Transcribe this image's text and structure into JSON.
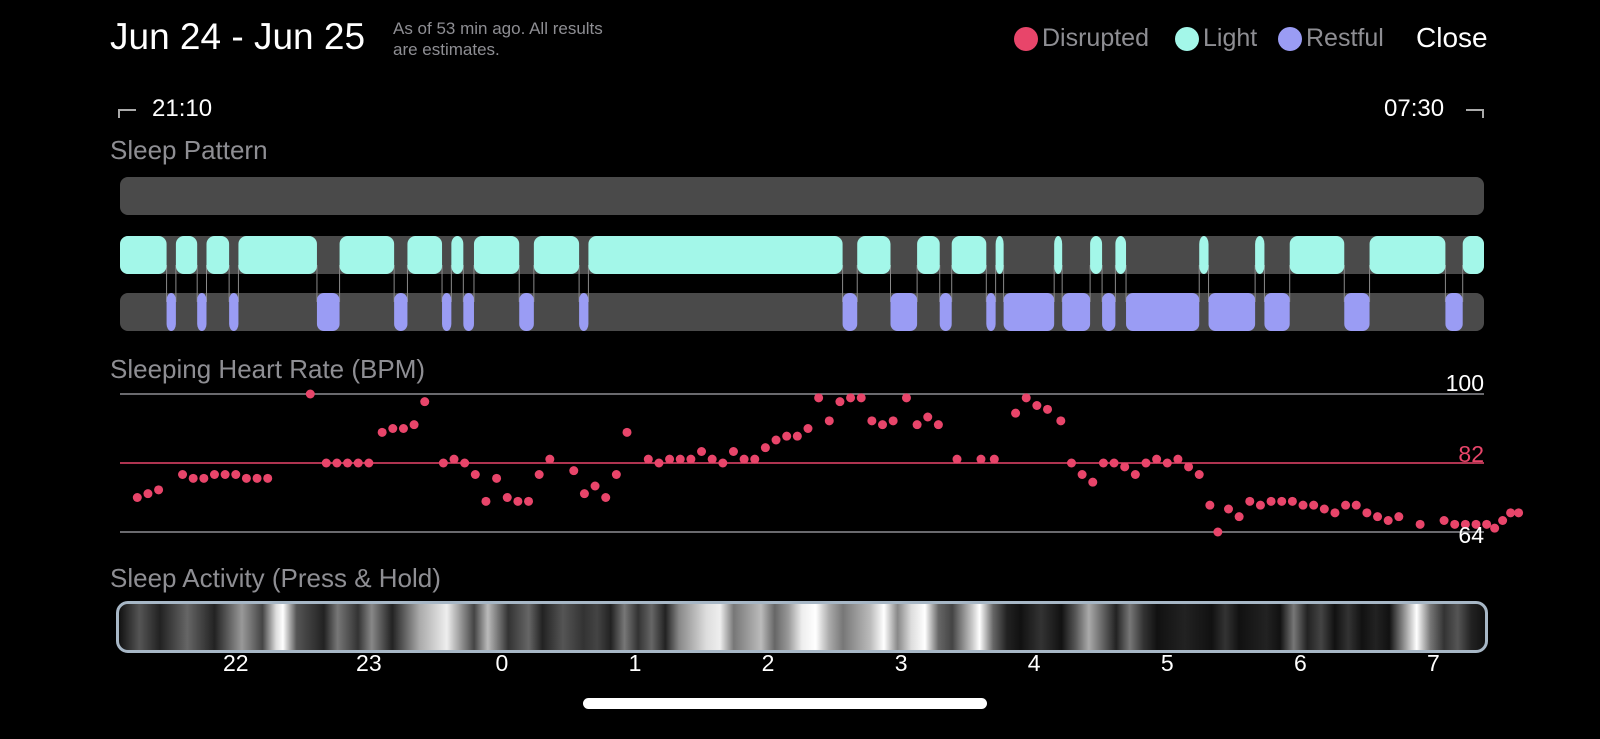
{
  "header": {
    "date_range": "Jun 24 - Jun 25",
    "as_of_line1": "As of 53 min ago. All results",
    "as_of_line2": "are estimates.",
    "close_label": "Close"
  },
  "legend": [
    {
      "label": "Disrupted",
      "color": "#e8456a"
    },
    {
      "label": "Light",
      "color": "#a3f7e9"
    },
    {
      "label": "Restful",
      "color": "#9a9cf4"
    }
  ],
  "time_range": {
    "start": "21:10",
    "end": "07:30"
  },
  "sleep_pattern": {
    "title": "Sleep Pattern",
    "light_segments": [
      [
        21.13,
        21.48
      ],
      [
        21.55,
        21.71
      ],
      [
        21.78,
        21.95
      ],
      [
        22.02,
        22.61
      ],
      [
        22.78,
        23.19
      ],
      [
        23.29,
        23.55
      ],
      [
        23.62,
        23.71
      ],
      [
        23.79,
        24.13
      ],
      [
        24.24,
        24.58
      ],
      [
        24.65,
        26.56
      ],
      [
        26.67,
        26.92
      ],
      [
        27.12,
        27.29
      ],
      [
        27.38,
        27.64
      ],
      [
        27.71,
        27.77
      ],
      [
        28.15,
        28.21
      ],
      [
        28.42,
        28.51
      ],
      [
        28.61,
        28.69
      ],
      [
        29.24,
        29.31
      ],
      [
        29.66,
        29.73
      ],
      [
        29.92,
        30.33
      ],
      [
        30.52,
        31.09
      ],
      [
        31.22,
        31.38
      ]
    ],
    "restful_segments": [
      [
        21.48,
        21.55
      ],
      [
        21.71,
        21.78
      ],
      [
        21.95,
        22.02
      ],
      [
        22.61,
        22.78
      ],
      [
        23.19,
        23.29
      ],
      [
        23.55,
        23.62
      ],
      [
        23.71,
        23.79
      ],
      [
        24.13,
        24.24
      ],
      [
        24.58,
        24.65
      ],
      [
        26.56,
        26.67
      ],
      [
        26.92,
        27.12
      ],
      [
        27.29,
        27.38
      ],
      [
        27.64,
        27.71
      ],
      [
        27.77,
        28.15
      ],
      [
        28.21,
        28.42
      ],
      [
        28.51,
        28.61
      ],
      [
        28.69,
        29.24
      ],
      [
        29.31,
        29.66
      ],
      [
        29.73,
        29.92
      ],
      [
        30.33,
        30.52
      ],
      [
        31.09,
        31.22
      ]
    ]
  },
  "heart_rate": {
    "title": "Sleeping Heart Rate (BPM)",
    "max_label": "100",
    "avg_label": "82",
    "min_label": "64",
    "max": 100,
    "avg": 82,
    "min": 64,
    "color": "#e8456a"
  },
  "chart_data": {
    "type": "scatter",
    "title": "Sleeping Heart Rate (BPM)",
    "x_range": [
      21.13,
      31.38
    ],
    "ylim": [
      64,
      100
    ],
    "points": [
      [
        21.26,
        73
      ],
      [
        21.34,
        74
      ],
      [
        21.42,
        75
      ],
      [
        21.6,
        79
      ],
      [
        21.68,
        78
      ],
      [
        21.76,
        78
      ],
      [
        21.84,
        79
      ],
      [
        21.92,
        79
      ],
      [
        22.0,
        79
      ],
      [
        22.08,
        78
      ],
      [
        22.16,
        78
      ],
      [
        22.24,
        78
      ],
      [
        22.56,
        100
      ],
      [
        22.68,
        82
      ],
      [
        22.76,
        82
      ],
      [
        22.84,
        82
      ],
      [
        22.92,
        82
      ],
      [
        23.0,
        82
      ],
      [
        23.1,
        90
      ],
      [
        23.18,
        91
      ],
      [
        23.26,
        91
      ],
      [
        23.34,
        92
      ],
      [
        23.42,
        98
      ],
      [
        23.56,
        82
      ],
      [
        23.64,
        83
      ],
      [
        23.72,
        82
      ],
      [
        23.8,
        79
      ],
      [
        23.88,
        72
      ],
      [
        23.96,
        78
      ],
      [
        24.04,
        73
      ],
      [
        24.12,
        72
      ],
      [
        24.2,
        72
      ],
      [
        24.28,
        79
      ],
      [
        24.36,
        83
      ],
      [
        24.54,
        80
      ],
      [
        24.62,
        74
      ],
      [
        24.7,
        76
      ],
      [
        24.78,
        73
      ],
      [
        24.86,
        79
      ],
      [
        24.94,
        90
      ],
      [
        25.1,
        83
      ],
      [
        25.18,
        82
      ],
      [
        25.26,
        83
      ],
      [
        25.34,
        83
      ],
      [
        25.42,
        83
      ],
      [
        25.5,
        85
      ],
      [
        25.58,
        83
      ],
      [
        25.66,
        82
      ],
      [
        25.74,
        85
      ],
      [
        25.82,
        83
      ],
      [
        25.9,
        83
      ],
      [
        25.98,
        86
      ],
      [
        26.06,
        88
      ],
      [
        26.14,
        89
      ],
      [
        26.22,
        89
      ],
      [
        26.3,
        91
      ],
      [
        26.38,
        99
      ],
      [
        26.46,
        93
      ],
      [
        26.54,
        98
      ],
      [
        26.62,
        99
      ],
      [
        26.7,
        99
      ],
      [
        26.78,
        93
      ],
      [
        26.86,
        92
      ],
      [
        26.94,
        93
      ],
      [
        27.04,
        99
      ],
      [
        27.12,
        92
      ],
      [
        27.2,
        94
      ],
      [
        27.28,
        92
      ],
      [
        27.42,
        83
      ],
      [
        27.6,
        83
      ],
      [
        27.7,
        83
      ],
      [
        27.86,
        95
      ],
      [
        27.94,
        99
      ],
      [
        28.02,
        97
      ],
      [
        28.1,
        96
      ],
      [
        28.2,
        93
      ],
      [
        28.28,
        82
      ],
      [
        28.36,
        79
      ],
      [
        28.44,
        77
      ],
      [
        28.52,
        82
      ],
      [
        28.6,
        82
      ],
      [
        28.68,
        81
      ],
      [
        28.76,
        79
      ],
      [
        28.84,
        82
      ],
      [
        28.92,
        83
      ],
      [
        29.0,
        82
      ],
      [
        29.08,
        83
      ],
      [
        29.16,
        81
      ],
      [
        29.24,
        79
      ],
      [
        29.32,
        71
      ],
      [
        29.38,
        64
      ],
      [
        29.46,
        70
      ],
      [
        29.54,
        68
      ],
      [
        29.62,
        72
      ],
      [
        29.7,
        71
      ],
      [
        29.78,
        72
      ],
      [
        29.86,
        72
      ],
      [
        29.94,
        72
      ],
      [
        30.02,
        71
      ],
      [
        30.1,
        71
      ],
      [
        30.18,
        70
      ],
      [
        30.26,
        69
      ],
      [
        30.34,
        71
      ],
      [
        30.42,
        71
      ],
      [
        30.5,
        69
      ],
      [
        30.58,
        68
      ],
      [
        30.66,
        67
      ],
      [
        30.74,
        68
      ],
      [
        30.9,
        66
      ],
      [
        31.08,
        67
      ],
      [
        31.16,
        66
      ],
      [
        31.24,
        66
      ],
      [
        31.32,
        66
      ],
      [
        31.4,
        66
      ],
      [
        31.46,
        65
      ],
      [
        31.52,
        67
      ],
      [
        31.58,
        69
      ],
      [
        31.64,
        69
      ]
    ]
  },
  "sleep_activity": {
    "title": "Sleep Activity (Press & Hold)"
  },
  "time_axis": {
    "ticks": [
      {
        "label": "22",
        "hour": 22
      },
      {
        "label": "23",
        "hour": 23
      },
      {
        "label": "0",
        "hour": 24
      },
      {
        "label": "1",
        "hour": 25
      },
      {
        "label": "2",
        "hour": 26
      },
      {
        "label": "3",
        "hour": 27
      },
      {
        "label": "4",
        "hour": 28
      },
      {
        "label": "5",
        "hour": 29
      },
      {
        "label": "6",
        "hour": 30
      },
      {
        "label": "7",
        "hour": 31
      }
    ]
  }
}
